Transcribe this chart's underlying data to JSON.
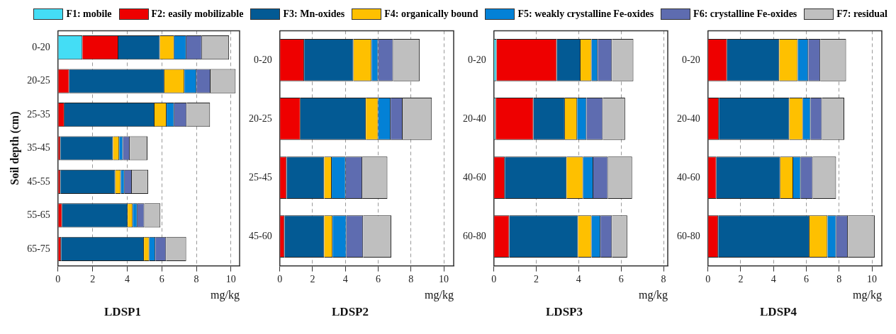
{
  "chart_data": [
    {
      "type": "bar",
      "orientation": "horizontal",
      "stacked": true,
      "title": "LDSP1",
      "xlabel": "mg/kg",
      "ylabel": "Soil depth (cm)",
      "categories": [
        "0-20",
        "20-25",
        "25-35",
        "35-45",
        "45-55",
        "55-65",
        "65-75"
      ],
      "xlim": [
        0,
        10.5
      ],
      "xticks": [
        0,
        2,
        4,
        6,
        8,
        10
      ],
      "grid": "x",
      "legend": "top",
      "series": [
        {
          "name": "F1: mobile",
          "color": "#44ddf5",
          "values": [
            1.41,
            0,
            0,
            0,
            0,
            0,
            0
          ]
        },
        {
          "name": "F2: easily mobilizable",
          "color": "#ee0000",
          "values": [
            2.08,
            0.65,
            0.37,
            0.14,
            0.14,
            0.24,
            0.18
          ]
        },
        {
          "name": "F3: Mn-oxides",
          "color": "#035a94",
          "values": [
            2.4,
            5.5,
            5.21,
            3.04,
            3.17,
            3.79,
            4.79
          ]
        },
        {
          "name": "F4: organically bound",
          "color": "#fec000",
          "values": [
            0.83,
            1.16,
            0.7,
            0.36,
            0.32,
            0.29,
            0.31
          ]
        },
        {
          "name": "F5: weakly crystalline Fe-oxides",
          "color": "#0381d6",
          "values": [
            0.7,
            0.7,
            0.44,
            0.22,
            0.22,
            0.27,
            0.35
          ]
        },
        {
          "name": "F6: crystalline Fe-oxides",
          "color": "#5e6cb0",
          "values": [
            0.9,
            0.81,
            0.72,
            0.39,
            0.42,
            0.4,
            0.62
          ]
        },
        {
          "name": "F7: residual",
          "color": "#bfbfbf",
          "values": [
            1.57,
            1.45,
            1.35,
            1.02,
            0.94,
            0.93,
            1.16
          ]
        }
      ]
    },
    {
      "type": "bar",
      "orientation": "horizontal",
      "stacked": true,
      "title": "LDSP2",
      "xlabel": "mg/kg",
      "categories": [
        "0-20",
        "20-25",
        "25-45",
        "45-60"
      ],
      "xlim": [
        0,
        10.6
      ],
      "xticks": [
        0,
        2,
        4,
        6,
        8,
        10
      ],
      "grid": "x",
      "series": [
        {
          "color": "#44ddf5",
          "values": [
            0,
            0,
            0,
            0
          ]
        },
        {
          "color": "#ee0000",
          "values": [
            1.49,
            1.26,
            0.42,
            0.29
          ]
        },
        {
          "color": "#035a94",
          "values": [
            3.0,
            3.99,
            2.29,
            2.42
          ]
        },
        {
          "color": "#fec000",
          "values": [
            1.11,
            0.75,
            0.46,
            0.51
          ]
        },
        {
          "color": "#0381d6",
          "values": [
            0.4,
            0.76,
            0.85,
            0.84
          ]
        },
        {
          "color": "#5e6cb0",
          "values": [
            0.91,
            0.73,
            1.01,
            1.02
          ]
        },
        {
          "color": "#bfbfbf",
          "values": [
            1.62,
            1.78,
            1.53,
            1.72
          ]
        }
      ]
    },
    {
      "type": "bar",
      "orientation": "horizontal",
      "stacked": true,
      "title": "LDSP3",
      "xlabel": "mg/kg",
      "categories": [
        "0-20",
        "20-40",
        "40-60",
        "60-80"
      ],
      "xlim": [
        0,
        8.2
      ],
      "xticks": [
        0,
        2,
        4,
        6,
        8
      ],
      "grid": "x",
      "series": [
        {
          "color": "#44ddf5",
          "values": [
            0.13,
            0.09,
            0,
            0
          ]
        },
        {
          "color": "#ee0000",
          "values": [
            2.84,
            1.78,
            0.52,
            0.73
          ]
        },
        {
          "color": "#035a94",
          "values": [
            1.12,
            1.48,
            2.91,
            3.24
          ]
        },
        {
          "color": "#fec000",
          "values": [
            0.52,
            0.58,
            0.78,
            0.64
          ]
        },
        {
          "color": "#0381d6",
          "values": [
            0.29,
            0.44,
            0.48,
            0.42
          ]
        },
        {
          "color": "#5e6cb0",
          "values": [
            0.67,
            0.77,
            0.69,
            0.54
          ]
        },
        {
          "color": "#bfbfbf",
          "values": [
            1.01,
            1.05,
            1.14,
            0.72
          ]
        }
      ]
    },
    {
      "type": "bar",
      "orientation": "horizontal",
      "stacked": true,
      "title": "LDSP4",
      "xlabel": "mg/kg",
      "categories": [
        "0-20",
        "20-40",
        "40-60",
        "60-80"
      ],
      "xlim": [
        0,
        10.6
      ],
      "xticks": [
        0,
        2,
        4,
        6,
        8,
        10
      ],
      "grid": "x",
      "series": [
        {
          "color": "#44ddf5",
          "values": [
            0,
            0,
            0,
            0
          ]
        },
        {
          "color": "#ee0000",
          "values": [
            1.17,
            0.67,
            0.52,
            0.63
          ]
        },
        {
          "color": "#035a94",
          "values": [
            3.18,
            4.29,
            3.89,
            5.56
          ]
        },
        {
          "color": "#fec000",
          "values": [
            1.13,
            0.83,
            0.79,
            1.1
          ]
        },
        {
          "color": "#0381d6",
          "values": [
            0.64,
            0.47,
            0.46,
            0.53
          ]
        },
        {
          "color": "#5e6cb0",
          "values": [
            0.73,
            0.69,
            0.73,
            0.71
          ]
        },
        {
          "color": "#bfbfbf",
          "values": [
            1.57,
            1.36,
            1.42,
            1.64
          ]
        }
      ]
    }
  ]
}
